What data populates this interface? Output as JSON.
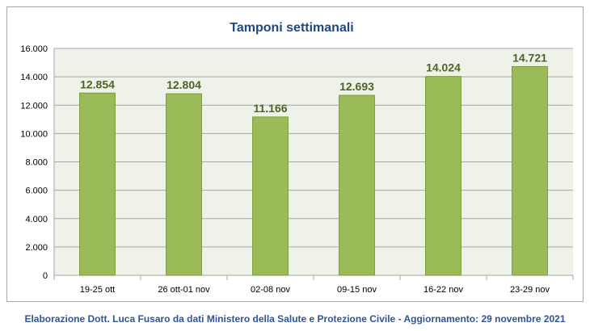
{
  "chart_data": {
    "type": "bar",
    "title": "Tamponi settimanali",
    "categories": [
      "19-25 ott",
      "26 ott-01 nov",
      "02-08 nov",
      "09-15 nov",
      "16-22 nov",
      "23-29 nov"
    ],
    "values": [
      12854,
      12804,
      11166,
      12693,
      14024,
      14721
    ],
    "data_labels": [
      "12.854",
      "12.804",
      "11.166",
      "12.693",
      "14.024",
      "14.721"
    ],
    "ylim": [
      0,
      16000
    ],
    "yticks": [
      0,
      2000,
      4000,
      6000,
      8000,
      10000,
      12000,
      14000,
      16000
    ],
    "ytick_labels": [
      "0",
      "2.000",
      "4.000",
      "6.000",
      "8.000",
      "10.000",
      "12.000",
      "14.000",
      "16.000"
    ],
    "grid": true,
    "bar_color": "#9bbb59",
    "bar_edge_color": "#7a9a3a",
    "plot_background": "#eff2e8",
    "label_color": "#4f6228",
    "title_color": "#1f497d"
  },
  "caption": "Elaborazione Dott. Luca Fusaro da dati Ministero della Salute e Protezione Civile - Aggiornamento: 29 novembre 2021"
}
